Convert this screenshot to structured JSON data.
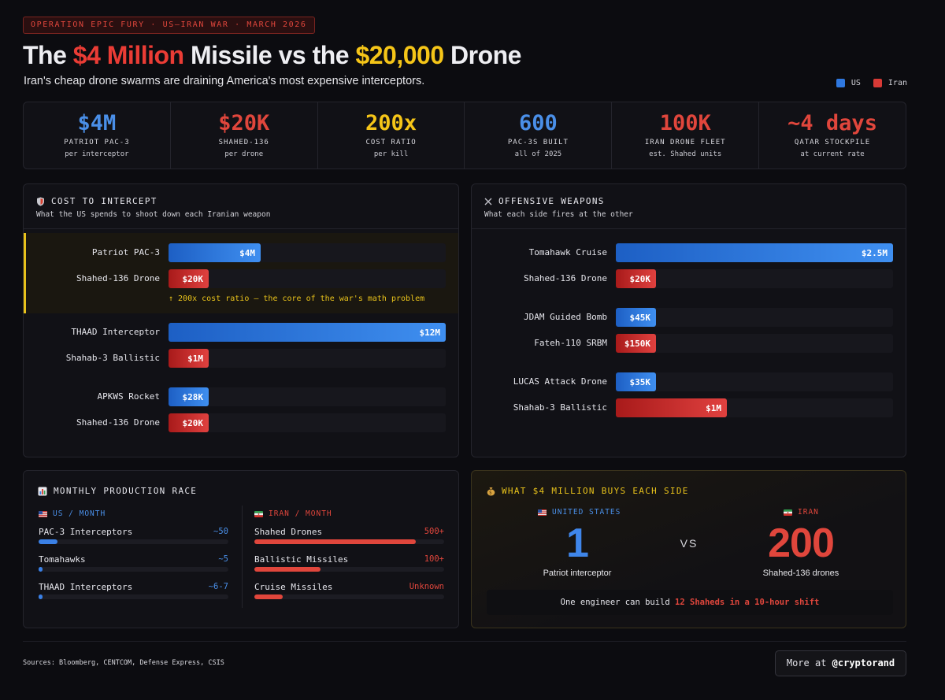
{
  "header": {
    "tag": "OPERATION EPIC FURY · US–IRAN WAR · MARCH 2026",
    "title_pre": "The ",
    "title_missile_price": "$4 Million",
    "title_mid": " Missile vs the ",
    "title_drone_price": "$20,000",
    "title_post": " Drone",
    "subtitle": "Iran's cheap drone swarms are draining America's most expensive interceptors."
  },
  "legend": [
    {
      "label": "US",
      "color": "#2f78e0"
    },
    {
      "label": "Iran",
      "color": "#d83a36"
    }
  ],
  "stats": [
    {
      "value": "$4M",
      "label": "PATRIOT PAC-3",
      "sub": "per interceptor",
      "color": "#4a8fe8"
    },
    {
      "value": "$20K",
      "label": "SHAHED-136",
      "sub": "per drone",
      "color": "#e0463c"
    },
    {
      "value": "200x",
      "label": "COST RATIO",
      "sub": "per kill",
      "color": "#f5c518"
    },
    {
      "value": "600",
      "label": "PAC-3S BUILT",
      "sub": "all of 2025",
      "color": "#4a8fe8"
    },
    {
      "value": "100K",
      "label": "IRAN DRONE FLEET",
      "sub": "est. Shahed units",
      "color": "#e0463c"
    },
    {
      "value": "~4 days",
      "label": "QATAR STOCKPILE",
      "sub": "at current rate",
      "color": "#e0463c"
    }
  ],
  "intercept": {
    "title": "COST TO INTERCEPT",
    "subtitle": "What the US spends to shoot down each Iranian weapon",
    "note": "↑ 200x cost ratio — the core of the war's math problem",
    "rows": [
      {
        "label": "Patriot PAC-3",
        "value": "$4M",
        "side": "us",
        "fill": 0.333
      },
      {
        "label": "Shahed-136 Drone",
        "value": "$20K",
        "side": "iran",
        "fill": 0.145
      },
      {
        "label": "THAAD Interceptor",
        "value": "$12M",
        "side": "us",
        "fill": 1.0
      },
      {
        "label": "Shahab-3 Ballistic",
        "value": "$1M",
        "side": "iran",
        "fill": 0.145
      },
      {
        "label": "APKWS Rocket",
        "value": "$28K",
        "side": "us",
        "fill": 0.145
      },
      {
        "label": "Shahed-136 Drone",
        "value": "$20K",
        "side": "iran",
        "fill": 0.145
      }
    ]
  },
  "offensive": {
    "title": "OFFENSIVE WEAPONS",
    "subtitle": "What each side fires at the other",
    "rows": [
      {
        "label": "Tomahawk Cruise",
        "value": "$2.5M",
        "side": "us",
        "fill": 1.0
      },
      {
        "label": "Shahed-136 Drone",
        "value": "$20K",
        "side": "iran",
        "fill": 0.145
      },
      {
        "label": "JDAM Guided Bomb",
        "value": "$45K",
        "side": "us",
        "fill": 0.145
      },
      {
        "label": "Fateh-110 SRBM",
        "value": "$150K",
        "side": "iran",
        "fill": 0.145
      },
      {
        "label": "LUCAS Attack Drone",
        "value": "$35K",
        "side": "us",
        "fill": 0.145
      },
      {
        "label": "Shahab-3 Ballistic",
        "value": "$1M",
        "side": "iran",
        "fill": 0.4
      }
    ]
  },
  "production": {
    "title": "MONTHLY PRODUCTION RACE",
    "us_header": "US / MONTH",
    "iran_header": "IRAN / MONTH",
    "us": [
      {
        "name": "PAC-3 Interceptors",
        "value": "~50",
        "fill": 0.1
      },
      {
        "name": "Tomahawks",
        "value": "~5",
        "fill": 0.02
      },
      {
        "name": "THAAD Interceptors",
        "value": "~6-7",
        "fill": 0.02
      }
    ],
    "iran": [
      {
        "name": "Shahed Drones",
        "value": "500+",
        "fill": 0.85
      },
      {
        "name": "Ballistic Missiles",
        "value": "100+",
        "fill": 0.35
      },
      {
        "name": "Cruise Missiles",
        "value": "Unknown",
        "fill": 0.15
      }
    ]
  },
  "buys": {
    "title": "WHAT $4 MILLION BUYS EACH SIDE",
    "us_label": "UNITED STATES",
    "iran_label": "IRAN",
    "us_number": "1",
    "iran_number": "200",
    "us_caption": "Patriot interceptor",
    "iran_caption": "Shahed-136 drones",
    "vs": "VS",
    "engineer_pre": "One engineer can build ",
    "engineer_bold": "12 Shaheds in a 10-hour shift"
  },
  "footer": {
    "sources": "Sources: Bloomberg, CENTCOM, Defense Express, CSIS",
    "more_pre": "More at ",
    "more_handle": "@cryptorand"
  }
}
